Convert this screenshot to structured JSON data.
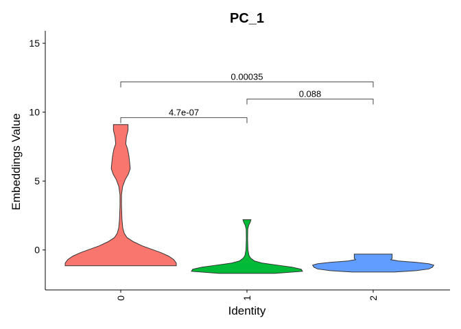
{
  "chart_data": {
    "type": "violin",
    "title": "PC_1",
    "xlabel": "Identity",
    "ylabel": "Embeddings Value",
    "categories": [
      "0",
      "1",
      "2"
    ],
    "ylim": [
      -2.9,
      15.9
    ],
    "yticks": [
      0,
      5,
      10,
      15
    ],
    "y_tick_labels": [
      "0",
      "5",
      "10",
      "15"
    ],
    "grid": false,
    "legend": "none",
    "series": [
      {
        "name": "0",
        "color": "#F8766D",
        "min": -1.15,
        "max": 9.1,
        "profile": [
          [
            -1.15,
            0.44
          ],
          [
            -0.95,
            0.44
          ],
          [
            -0.7,
            0.42
          ],
          [
            -0.45,
            0.38
          ],
          [
            -0.2,
            0.32
          ],
          [
            0.0,
            0.26
          ],
          [
            0.3,
            0.17
          ],
          [
            0.6,
            0.1
          ],
          [
            0.9,
            0.05
          ],
          [
            1.2,
            0.028
          ],
          [
            1.6,
            0.016
          ],
          [
            2.2,
            0.01
          ],
          [
            3.2,
            0.006
          ],
          [
            4.0,
            0.006
          ],
          [
            4.6,
            0.015
          ],
          [
            5.1,
            0.035
          ],
          [
            5.5,
            0.06
          ],
          [
            5.9,
            0.075
          ],
          [
            6.4,
            0.07
          ],
          [
            6.8,
            0.065
          ],
          [
            7.3,
            0.055
          ],
          [
            7.7,
            0.04
          ],
          [
            8.2,
            0.045
          ],
          [
            8.7,
            0.058
          ],
          [
            9.1,
            0.058
          ]
        ]
      },
      {
        "name": "1",
        "color": "#00BA38",
        "min": -1.7,
        "max": 2.2,
        "profile": [
          [
            -1.7,
            0.22
          ],
          [
            -1.55,
            0.44
          ],
          [
            -1.4,
            0.43
          ],
          [
            -1.25,
            0.36
          ],
          [
            -1.1,
            0.24
          ],
          [
            -0.95,
            0.12
          ],
          [
            -0.8,
            0.06
          ],
          [
            -0.6,
            0.03
          ],
          [
            -0.4,
            0.016
          ],
          [
            0.0,
            0.008
          ],
          [
            0.8,
            0.005
          ],
          [
            1.5,
            0.006
          ],
          [
            1.8,
            0.014
          ],
          [
            2.0,
            0.025
          ],
          [
            2.2,
            0.032
          ]
        ]
      },
      {
        "name": "2",
        "color": "#619CFF",
        "min": -1.6,
        "max": -0.3,
        "profile": [
          [
            -1.6,
            0.17
          ],
          [
            -1.5,
            0.34
          ],
          [
            -1.38,
            0.44
          ],
          [
            -1.25,
            0.47
          ],
          [
            -1.1,
            0.48
          ],
          [
            -1.0,
            0.44
          ],
          [
            -0.9,
            0.34
          ],
          [
            -0.8,
            0.2
          ],
          [
            -0.7,
            0.14
          ],
          [
            -0.6,
            0.15
          ],
          [
            -0.45,
            0.15
          ],
          [
            -0.3,
            0.15
          ]
        ]
      }
    ],
    "comparisons": [
      {
        "groups": [
          "0",
          "1"
        ],
        "label": "4.7e-07",
        "y": 9.6
      },
      {
        "groups": [
          "1",
          "2"
        ],
        "label": "0.088",
        "y": 10.95
      },
      {
        "groups": [
          "0",
          "2"
        ],
        "label": "0.00035",
        "y": 12.2
      }
    ]
  }
}
